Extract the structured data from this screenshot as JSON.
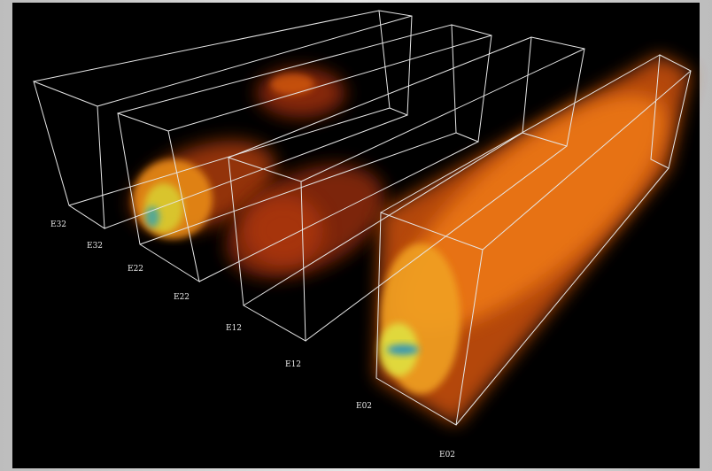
{
  "labels": [
    "E32",
    "E32",
    "E22",
    "E22",
    "E12",
    "E12",
    "E02",
    "E02"
  ]
}
